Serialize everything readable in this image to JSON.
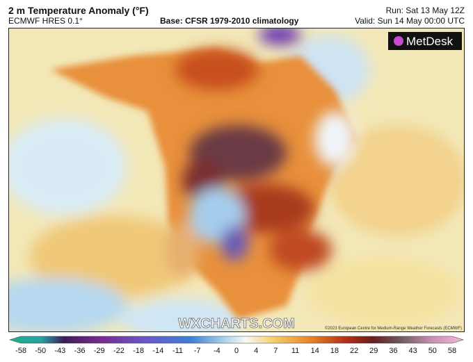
{
  "header": {
    "title": "2 m Temperature Anomaly (°F)",
    "model": "ECMWF HRES 0.1°",
    "base": "Base: CFSR 1979-2010 climatology",
    "run": "Run: Sat 13 May 12Z",
    "valid": "Valid: Sun 14 May 00:00 UTC"
  },
  "map": {
    "logo": "MetDesk",
    "watermark": "WXCHARTS.COM",
    "copyright": "©2023 European Centre for Medium-Range Weather Forecasts (ECMWF)"
  },
  "colorbar": {
    "ticks": [
      -58,
      -50,
      -43,
      -36,
      -29,
      -22,
      -18,
      -14,
      -11,
      -7,
      -4,
      0,
      4,
      7,
      11,
      14,
      18,
      22,
      29,
      36,
      43,
      50,
      58
    ]
  }
}
